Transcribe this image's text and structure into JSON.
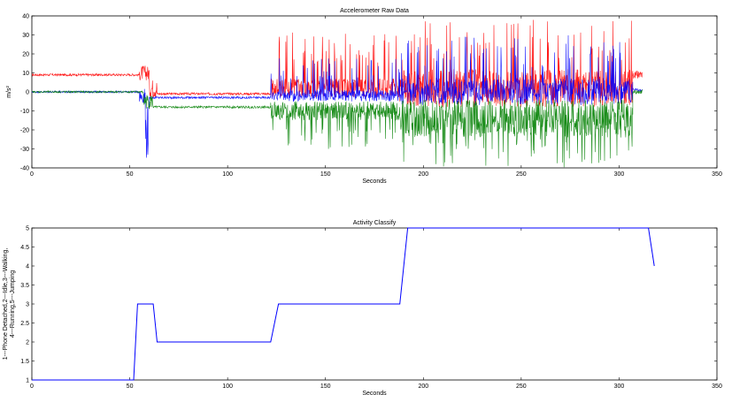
{
  "chart_data": [
    {
      "type": "line",
      "title": "Accelerometer Raw Data",
      "xlabel": "Seconds",
      "ylabel": "m/s²",
      "xlim": [
        0,
        350
      ],
      "ylim": [
        -40,
        40
      ],
      "xticks": [
        0,
        50,
        100,
        150,
        200,
        250,
        300,
        350
      ],
      "yticks": [
        40,
        30,
        20,
        10,
        0,
        -10,
        -20,
        -30,
        -40
      ],
      "grid": false,
      "series": [
        {
          "color": "#ff0000",
          "segments": [
            {
              "x0": 0,
              "x1": 55,
              "base": 9,
              "amp": 0.6
            },
            {
              "x0": 55,
              "x1": 60,
              "base": 10,
              "amp": 4
            },
            {
              "x0": 60,
              "x1": 64,
              "base": 2,
              "amp": 5
            },
            {
              "x0": 64,
              "x1": 122,
              "base": -1,
              "amp": 0.6
            },
            {
              "x0": 122,
              "x1": 188,
              "base": 2,
              "amp": 5,
              "spike": 32
            },
            {
              "x0": 188,
              "x1": 307,
              "base": 2,
              "amp": 10,
              "spike": 38
            },
            {
              "x0": 307,
              "x1": 312,
              "base": 9,
              "amp": 2
            }
          ]
        },
        {
          "color": "#0000ff",
          "segments": [
            {
              "x0": 0,
              "x1": 55,
              "base": 0,
              "amp": 0.5
            },
            {
              "x0": 55,
              "x1": 58,
              "base": -2,
              "amp": 4
            },
            {
              "x0": 58,
              "x1": 60,
              "base": -20,
              "amp": 15
            },
            {
              "x0": 60,
              "x1": 122,
              "base": -3,
              "amp": 0.6
            },
            {
              "x0": 122,
              "x1": 188,
              "base": -2,
              "amp": 3,
              "spike": 18
            },
            {
              "x0": 188,
              "x1": 307,
              "base": 0,
              "amp": 7,
              "spike": 30
            },
            {
              "x0": 307,
              "x1": 312,
              "base": 1,
              "amp": 1
            }
          ]
        },
        {
          "color": "#008000",
          "segments": [
            {
              "x0": 0,
              "x1": 57,
              "base": 0,
              "amp": 0.5
            },
            {
              "x0": 57,
              "x1": 62,
              "base": -5,
              "amp": 4
            },
            {
              "x0": 62,
              "x1": 122,
              "base": -8,
              "amp": 0.6
            },
            {
              "x0": 122,
              "x1": 188,
              "base": -10,
              "amp": 5,
              "spike": -30
            },
            {
              "x0": 188,
              "x1": 307,
              "base": -14,
              "amp": 10,
              "spike": -40
            },
            {
              "x0": 307,
              "x1": 312,
              "base": 0,
              "amp": 1
            }
          ]
        }
      ]
    },
    {
      "type": "line",
      "title": "Activity Classify",
      "xlabel": "Seconds",
      "ylabel_lines": [
        "1---Phone Detached,2---Idle,3---Walking,",
        "4---Running,5---Jumping"
      ],
      "xlim": [
        0,
        350
      ],
      "ylim": [
        1,
        5
      ],
      "xticks": [
        0,
        50,
        100,
        150,
        200,
        250,
        300,
        350
      ],
      "yticks": [
        5,
        4.5,
        4,
        3.5,
        3,
        2.5,
        2,
        1.5,
        1
      ],
      "grid": false,
      "series": [
        {
          "color": "#0000ff",
          "x": [
            0,
            52,
            54,
            62,
            64,
            122,
            126,
            188,
            192,
            315,
            318
          ],
          "y": [
            1,
            1,
            3,
            3,
            2,
            2,
            3,
            3,
            5,
            5,
            4
          ]
        }
      ]
    }
  ]
}
